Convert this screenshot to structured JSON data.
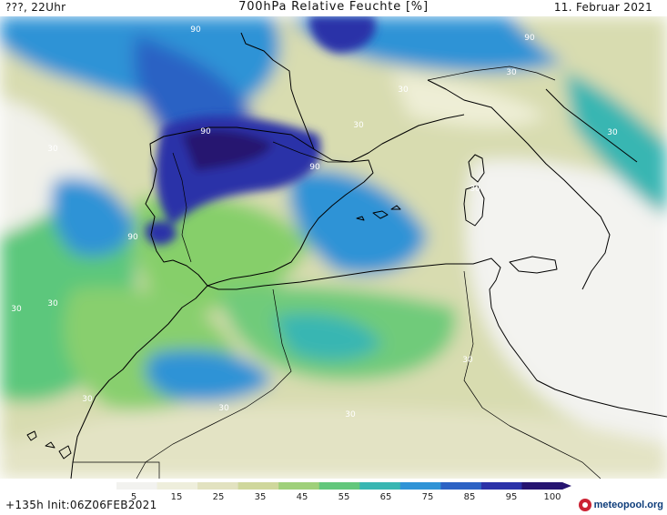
{
  "header": {
    "left": "???, 22Uhr",
    "title": "700hPa Relative Feuchte [%]",
    "date": "11. Februar 2021"
  },
  "map": {
    "contour_labels": [
      "90",
      "90",
      "90",
      "90",
      "90",
      "30",
      "30",
      "30",
      "30",
      "30",
      "30",
      "30",
      "30",
      "30",
      "30",
      "30",
      "30"
    ]
  },
  "legend": {
    "ticks": [
      "5",
      "15",
      "25",
      "35",
      "45",
      "55",
      "65",
      "75",
      "85",
      "95",
      "100"
    ],
    "colors": [
      "#f2f2ef",
      "#eeeedc",
      "#e2e2c0",
      "#cfd79c",
      "#9fd07a",
      "#62c77c",
      "#38b6b2",
      "#2f93d6",
      "#2c62c4",
      "#2b32a8",
      "#261470"
    ]
  },
  "footer": {
    "run": "+135h  Init:06Z06FEB2021",
    "brand": "meteopool.org"
  }
}
